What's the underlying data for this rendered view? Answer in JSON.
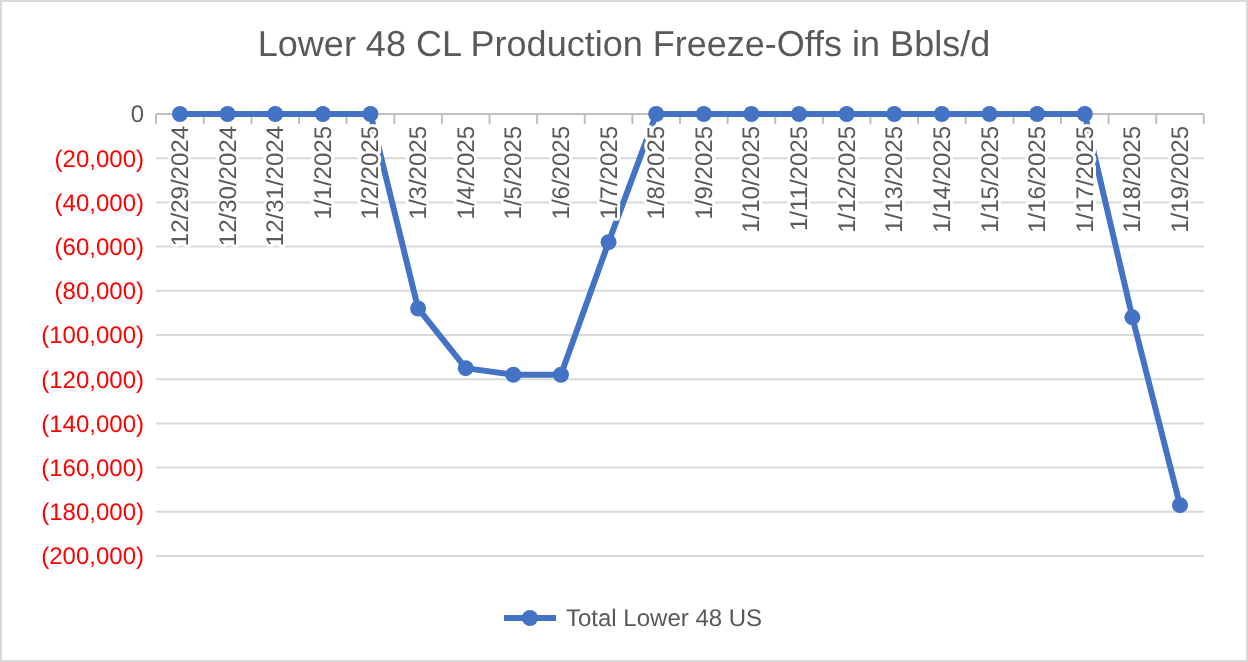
{
  "chart_data": {
    "type": "line",
    "title": "Lower 48 CL Production Freeze-Offs in Bbls/d",
    "categories": [
      "12/29/2024",
      "12/30/2024",
      "12/31/2024",
      "1/1/2025",
      "1/2/2025",
      "1/3/2025",
      "1/4/2025",
      "1/5/2025",
      "1/6/2025",
      "1/7/2025",
      "1/8/2025",
      "1/9/2025",
      "1/10/2025",
      "1/11/2025",
      "1/12/2025",
      "1/13/2025",
      "1/14/2025",
      "1/15/2025",
      "1/16/2025",
      "1/17/2025",
      "1/18/2025",
      "1/19/2025"
    ],
    "series": [
      {
        "name": "Total Lower 48 US",
        "color": "#4472c4",
        "values": [
          0,
          0,
          0,
          0,
          0,
          -88000,
          -115000,
          -118000,
          -118000,
          -58000,
          0,
          0,
          0,
          0,
          0,
          0,
          0,
          0,
          0,
          0,
          -92000,
          -177000
        ]
      }
    ],
    "ylim": [
      -200000,
      0
    ],
    "yticks": [
      {
        "value": -200000,
        "label": "(200,000)"
      },
      {
        "value": -180000,
        "label": "(180,000)"
      },
      {
        "value": -160000,
        "label": "(160,000)"
      },
      {
        "value": -140000,
        "label": "(140,000)"
      },
      {
        "value": -120000,
        "label": "(120,000)"
      },
      {
        "value": -100000,
        "label": "(100,000)"
      },
      {
        "value": -80000,
        "label": "(80,000)"
      },
      {
        "value": -60000,
        "label": "(60,000)"
      },
      {
        "value": -40000,
        "label": "(40,000)"
      },
      {
        "value": -20000,
        "label": "(20,000)"
      },
      0
    ],
    "grid": "y",
    "legend": "bottom",
    "marker": "circle",
    "line_style": "solid"
  }
}
